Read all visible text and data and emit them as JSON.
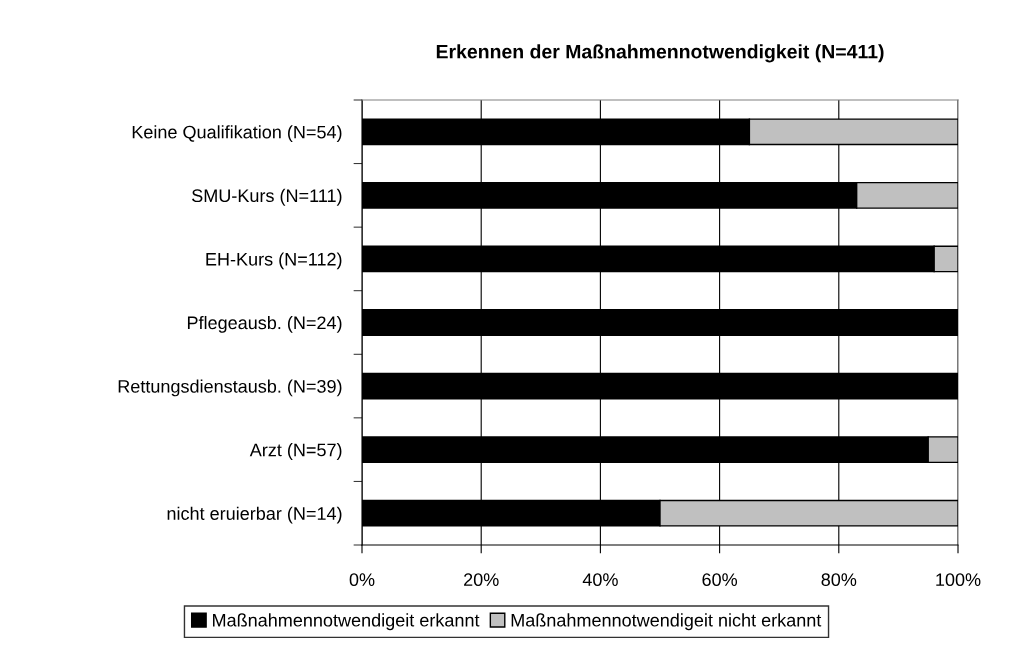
{
  "chart_data": {
    "type": "bar",
    "orientation": "horizontal",
    "stacked": true,
    "title": "Erkennen der Maßnahmennotwendigkeit (N=411)",
    "categories": [
      "Keine Qualifikation (N=54)",
      "SMU-Kurs (N=111)",
      "EH-Kurs (N=112)",
      "Pflegeausb. (N=24)",
      "Rettungsdienstausb. (N=39)",
      "Arzt (N=57)",
      "nicht eruierbar (N=14)"
    ],
    "series": [
      {
        "name": "Maßnahmennotwendigeit erkannt",
        "color": "#000000",
        "values": [
          65,
          83,
          96,
          100,
          100,
          95,
          50
        ]
      },
      {
        "name": "Maßnahmennotwendigeit nicht erkannt",
        "color": "#c0c0c0",
        "values": [
          35,
          17,
          4,
          0,
          0,
          5,
          50
        ]
      }
    ],
    "xlim": [
      0,
      100
    ],
    "xticks": [
      {
        "value": 0,
        "label": "0%"
      },
      {
        "value": 20,
        "label": "20%"
      },
      {
        "value": 40,
        "label": "40%"
      },
      {
        "value": 60,
        "label": "60%"
      },
      {
        "value": 80,
        "label": "80%"
      },
      {
        "value": 100,
        "label": "100%"
      }
    ],
    "grid": "x",
    "legend": "bottom"
  }
}
